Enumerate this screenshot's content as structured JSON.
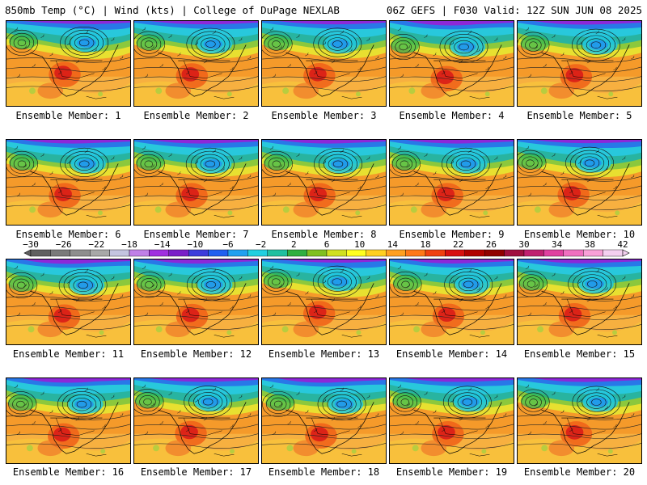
{
  "header": {
    "left": "850mb Temp (°C) | Wind (kts) | College of DuPage NEXLAB",
    "right": "06Z GEFS | F030 Valid: 12Z SUN JUN 08 2025"
  },
  "member_label_prefix": "Ensemble Member: ",
  "members": [
    1,
    2,
    3,
    4,
    5,
    6,
    7,
    8,
    9,
    10,
    11,
    12,
    13,
    14,
    15,
    16,
    17,
    18,
    19,
    20
  ],
  "colorbar": {
    "ticks": [
      "-30",
      "-26",
      "-22",
      "-18",
      "-14",
      "-10",
      "-6",
      "-2",
      "2",
      "6",
      "10",
      "14",
      "18",
      "22",
      "26",
      "30",
      "34",
      "38",
      "42"
    ],
    "colors": [
      "#606060",
      "#7a7a7a",
      "#8e8e8e",
      "#a8a8a8",
      "#c4c4e0",
      "#c080e8",
      "#a030e0",
      "#7a1ec8",
      "#3c3cdc",
      "#2060f0",
      "#20a0f0",
      "#20d0e0",
      "#20c0a0",
      "#30b040",
      "#80c020",
      "#d0e020",
      "#ffff20",
      "#ffd020",
      "#ffa020",
      "#ff7818",
      "#f04010",
      "#d81010",
      "#b00000",
      "#900000",
      "#a01040",
      "#c02070",
      "#e040a0",
      "#f070c0",
      "#f8a0d8",
      "#f4d0f0"
    ]
  }
}
